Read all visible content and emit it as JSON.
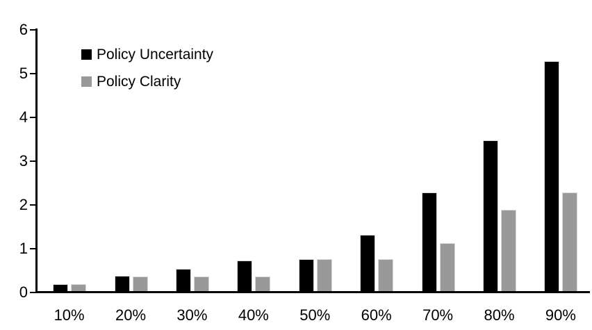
{
  "chart_data": {
    "type": "bar",
    "title": "",
    "xlabel": "",
    "ylabel": "",
    "categories": [
      "10%",
      "20%",
      "30%",
      "40%",
      "50%",
      "60%",
      "70%",
      "80%",
      "90%"
    ],
    "series": [
      {
        "name": "Policy Uncertainty",
        "color": "#000000",
        "values": [
          0.2,
          0.4,
          0.55,
          0.75,
          0.78,
          1.33,
          2.3,
          3.5,
          5.3
        ]
      },
      {
        "name": "Policy Clarity",
        "color": "#999999",
        "values": [
          0.2,
          0.38,
          0.38,
          0.38,
          0.77,
          0.77,
          1.14,
          1.9,
          2.3
        ]
      }
    ],
    "ylim": [
      0,
      6
    ],
    "yticks": [
      0,
      1,
      2,
      3,
      4,
      5,
      6
    ],
    "grid": false,
    "legend_position": "top-left",
    "axis_color": "#000000",
    "background_color": "#ffffff"
  }
}
